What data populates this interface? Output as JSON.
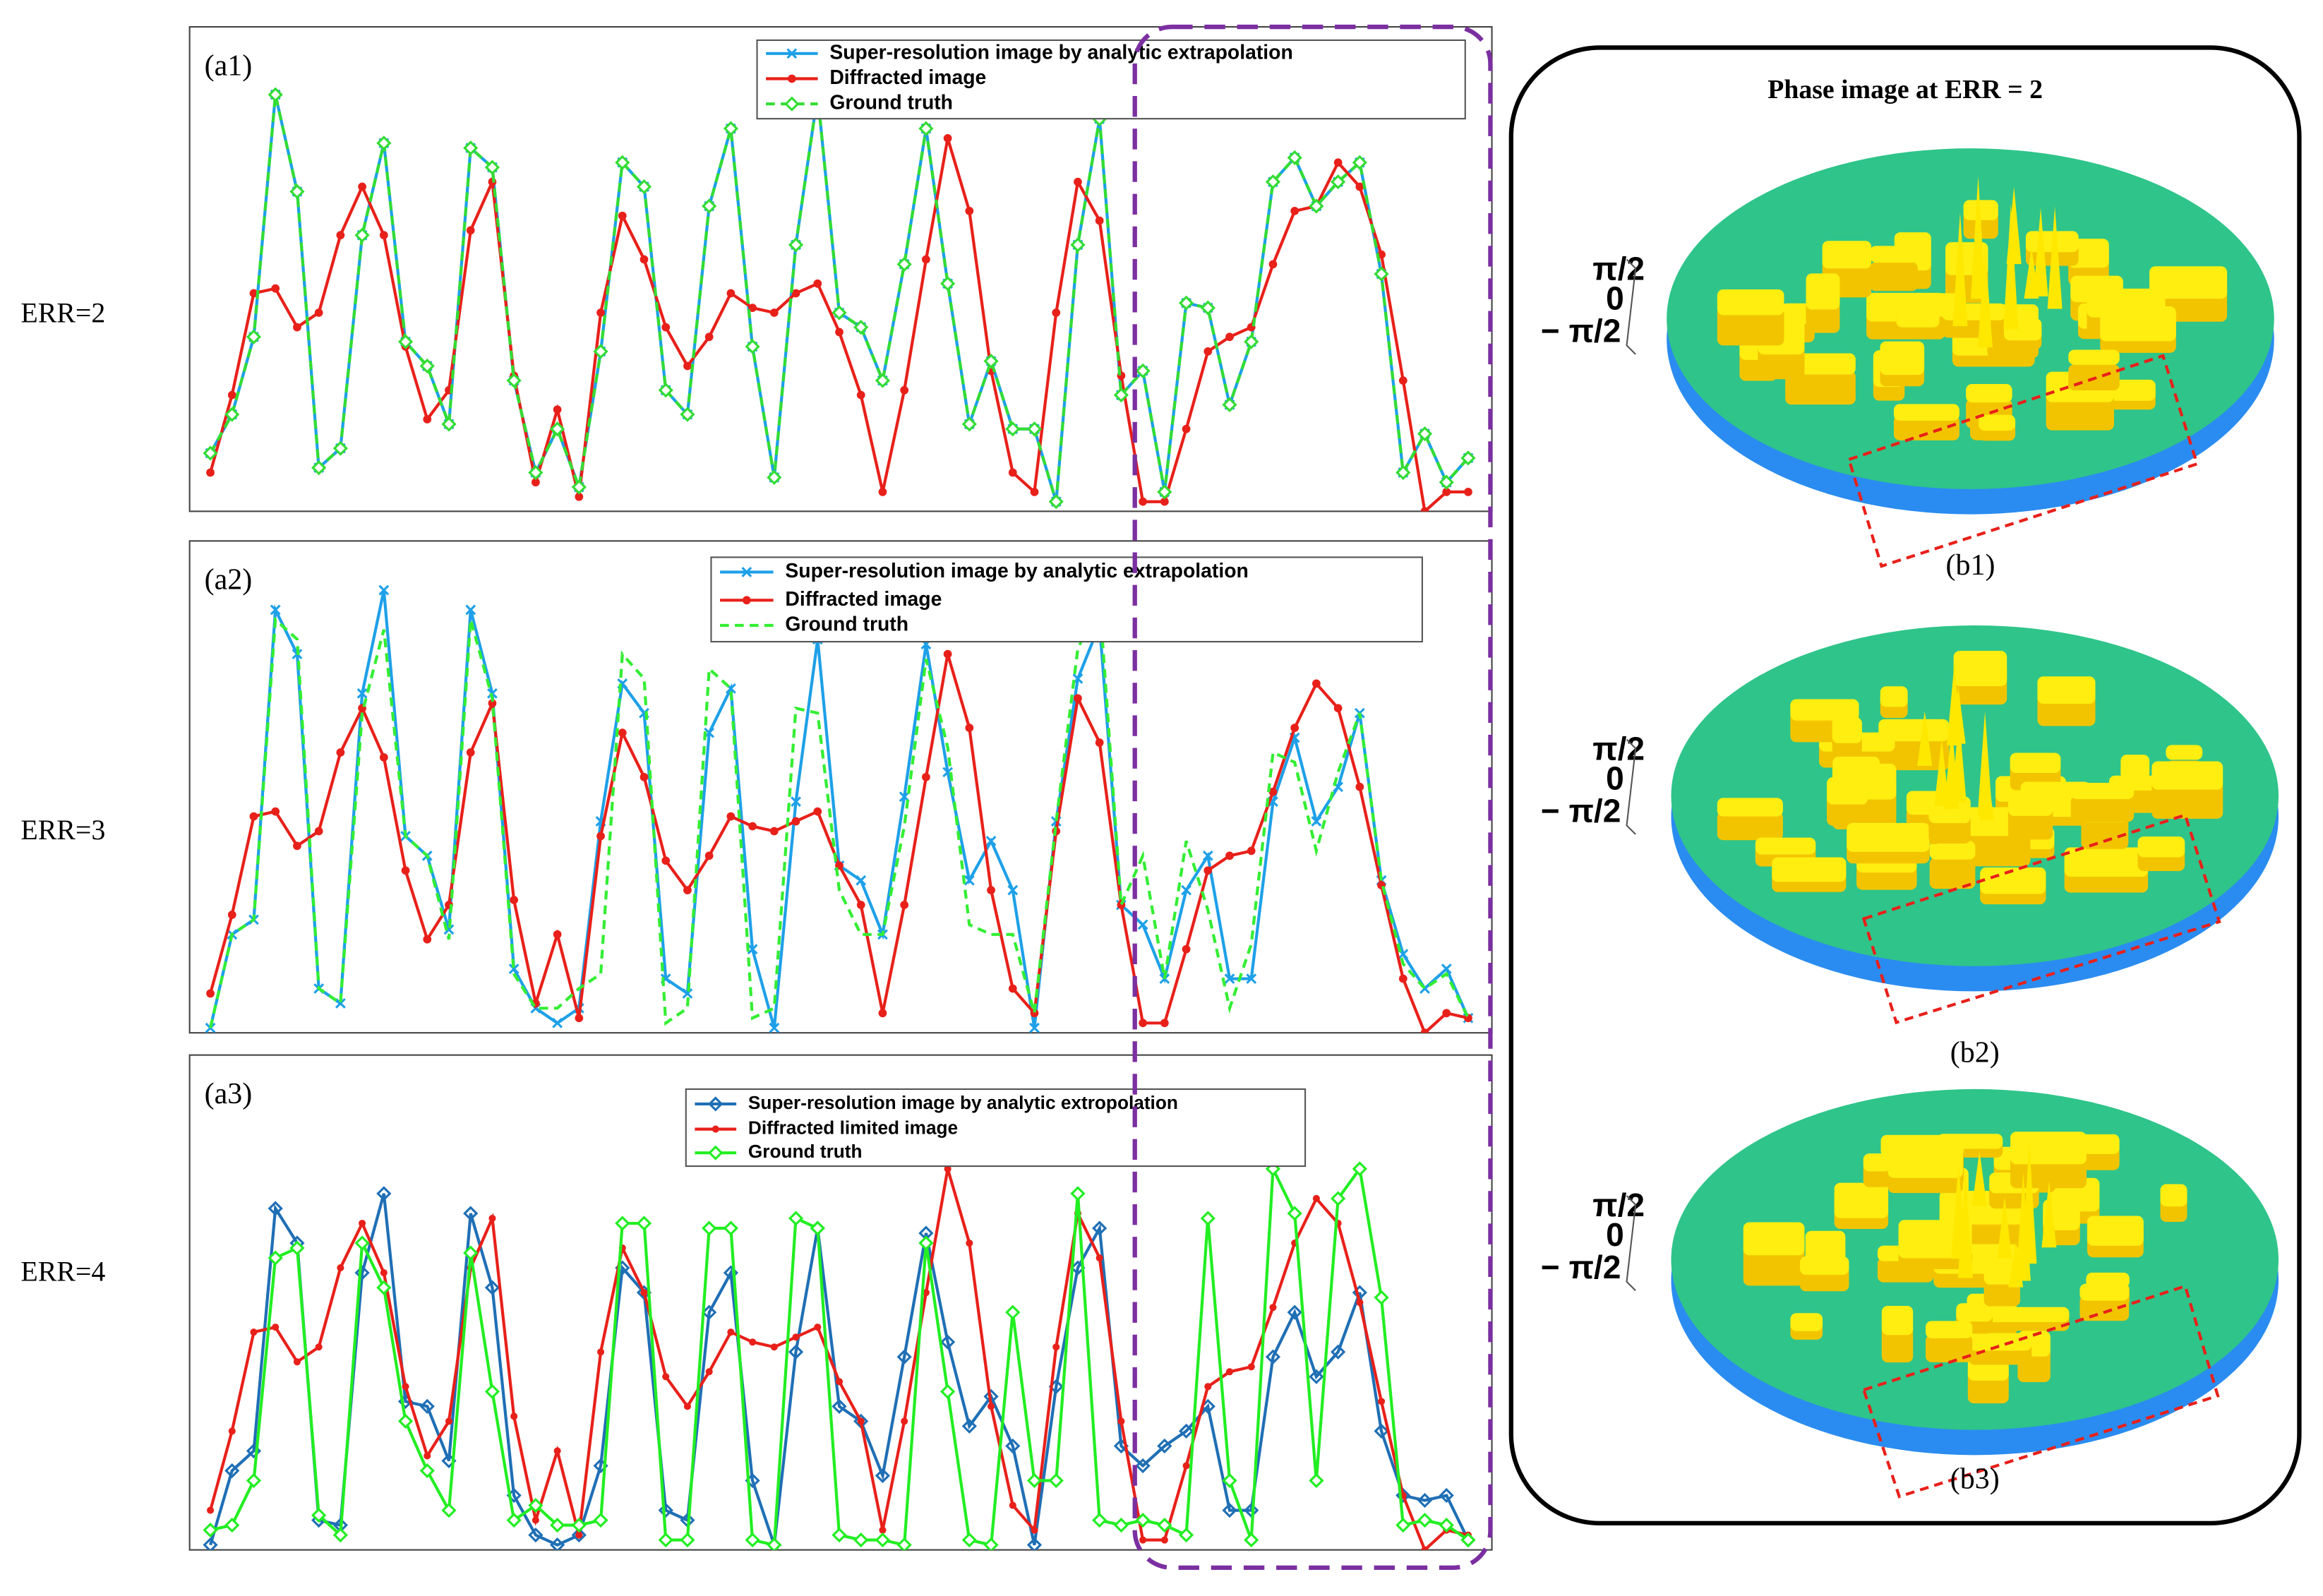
{
  "chart_data": [
    {
      "type": "line",
      "annotation": "(a1)",
      "ylabel": "ERR=2",
      "ylim": [
        0,
        100
      ],
      "legend": "upper right",
      "series": [
        {
          "name": "Super-resolution image by analytic extrapolation",
          "color": "#1ea0e8",
          "marker": "x",
          "linestyle": "solid",
          "values": [
            12,
            20,
            36,
            86,
            66,
            9,
            13,
            57,
            76,
            35,
            30,
            18,
            75,
            71,
            27,
            8,
            17,
            5,
            33,
            72,
            67,
            25,
            20,
            63,
            79,
            34,
            7,
            55,
            86,
            41,
            38,
            27,
            51,
            79,
            47,
            18,
            31,
            17,
            17,
            2,
            55,
            81,
            24,
            29,
            4,
            43,
            42,
            22,
            35,
            68,
            73,
            63,
            68,
            72,
            49,
            8,
            16,
            6,
            11
          ]
        },
        {
          "name": "Diffracted image",
          "color": "#e8201a",
          "marker": "star",
          "linestyle": "solid",
          "values": [
            8,
            24,
            45,
            46,
            38,
            41,
            57,
            67,
            57,
            34,
            19,
            25,
            58,
            68,
            28,
            6,
            21,
            3,
            41,
            61,
            52,
            38,
            30,
            36,
            45,
            42,
            41,
            45,
            47,
            37,
            24,
            4,
            25,
            52,
            77,
            62,
            29,
            8,
            4,
            41,
            68,
            60,
            28,
            2,
            2,
            17,
            33,
            36,
            38,
            51,
            62,
            63,
            72,
            67,
            53,
            27,
            0,
            4,
            4
          ]
        },
        {
          "name": "Ground truth",
          "color": "#33dd33",
          "marker": "diamond",
          "linestyle": "dashed",
          "values": [
            12,
            20,
            36,
            86,
            66,
            9,
            13,
            57,
            76,
            35,
            30,
            18,
            75,
            71,
            27,
            8,
            17,
            5,
            33,
            72,
            67,
            25,
            20,
            63,
            79,
            34,
            7,
            55,
            86,
            41,
            38,
            27,
            51,
            79,
            47,
            18,
            31,
            17,
            17,
            2,
            55,
            81,
            24,
            29,
            4,
            43,
            42,
            22,
            35,
            68,
            73,
            63,
            68,
            72,
            49,
            8,
            16,
            6,
            11
          ]
        }
      ]
    },
    {
      "type": "line",
      "annotation": "(a2)",
      "ylabel": "ERR=3",
      "ylim": [
        0,
        100
      ],
      "legend": "upper right",
      "series": [
        {
          "name": "Super-resolution image by analytic extrapolation",
          "color": "#1ea0e8",
          "marker": "x",
          "linestyle": "solid",
          "values": [
            1,
            20,
            23,
            86,
            77,
            9,
            6,
            69,
            90,
            40,
            36,
            21,
            86,
            69,
            13,
            5,
            2,
            5,
            43,
            71,
            65,
            11,
            8,
            61,
            70,
            17,
            1,
            47,
            80,
            34,
            31,
            20,
            48,
            79,
            53,
            31,
            39,
            29,
            1,
            43,
            72,
            83,
            26,
            22,
            11,
            29,
            36,
            11,
            11,
            47,
            60,
            43,
            50,
            65,
            31,
            16,
            9,
            13,
            3
          ]
        },
        {
          "name": "Diffracted image",
          "color": "#e8201a",
          "marker": "star",
          "linestyle": "solid",
          "values": [
            8,
            24,
            44,
            45,
            38,
            41,
            57,
            66,
            56,
            33,
            19,
            26,
            57,
            67,
            27,
            6,
            20,
            3,
            40,
            61,
            52,
            35,
            29,
            36,
            44,
            42,
            41,
            43,
            45,
            34,
            26,
            4,
            26,
            52,
            77,
            62,
            29,
            9,
            4,
            41,
            68,
            59,
            26,
            2,
            2,
            17,
            33,
            36,
            37,
            49,
            62,
            71,
            66,
            50,
            30,
            11,
            0,
            4,
            3
          ]
        },
        {
          "name": "Ground truth",
          "color": "#33ee33",
          "linestyle": "dashed",
          "values": [
            1,
            20,
            23,
            84,
            80,
            9,
            6,
            65,
            82,
            40,
            36,
            19,
            84,
            68,
            12,
            5,
            5,
            9,
            12,
            77,
            72,
            2,
            5,
            74,
            70,
            3,
            5,
            66,
            65,
            29,
            20,
            20,
            42,
            76,
            58,
            22,
            20,
            20,
            4,
            43,
            78,
            88,
            26,
            36,
            11,
            39,
            25,
            5,
            18,
            57,
            55,
            37,
            53,
            65,
            31,
            14,
            9,
            12,
            3
          ]
        }
      ]
    },
    {
      "type": "line",
      "annotation": "(a3)",
      "ylabel": "ERR=4",
      "ylim": [
        0,
        100
      ],
      "legend": "upper right",
      "series": [
        {
          "name": "Super-resolution image by analytic extropolation",
          "color": "#1f6fb5",
          "marker": "diamond-open",
          "linestyle": "solid",
          "values": [
            1,
            16,
            20,
            69,
            62,
            6,
            5,
            56,
            72,
            30,
            29,
            18,
            68,
            53,
            11,
            3,
            1,
            3,
            17,
            57,
            52,
            8,
            6,
            48,
            56,
            14,
            1,
            40,
            65,
            29,
            26,
            15,
            39,
            64,
            42,
            25,
            31,
            21,
            1,
            33,
            57,
            65,
            21,
            17,
            21,
            24,
            29,
            8,
            8,
            39,
            48,
            35,
            40,
            52,
            24,
            11,
            10,
            11,
            2
          ]
        },
        {
          "name": "Diffracted limited image",
          "color": "#e8201a",
          "marker": "dot",
          "linestyle": "solid",
          "values": [
            8,
            24,
            44,
            45,
            38,
            41,
            57,
            66,
            56,
            33,
            19,
            26,
            57,
            67,
            27,
            6,
            20,
            3,
            40,
            61,
            52,
            35,
            29,
            36,
            44,
            42,
            41,
            43,
            45,
            34,
            26,
            4,
            26,
            52,
            77,
            62,
            29,
            9,
            4,
            41,
            68,
            59,
            26,
            2,
            2,
            17,
            33,
            36,
            37,
            49,
            62,
            71,
            66,
            50,
            30,
            11,
            0,
            4,
            3
          ]
        },
        {
          "name": "Ground truth",
          "color": "#22ee22",
          "marker": "diamond",
          "linestyle": "solid",
          "values": [
            4,
            5,
            14,
            59,
            61,
            7,
            3,
            62,
            53,
            26,
            16,
            8,
            60,
            32,
            6,
            9,
            5,
            5,
            6,
            66,
            66,
            2,
            2,
            65,
            65,
            2,
            1,
            67,
            65,
            3,
            2,
            2,
            1,
            62,
            32,
            2,
            1,
            48,
            14,
            14,
            72,
            6,
            5,
            6,
            5,
            3,
            67,
            14,
            2,
            77,
            68,
            14,
            71,
            77,
            51,
            5,
            6,
            5,
            2
          ]
        }
      ]
    }
  ],
  "phase_panel": {
    "title": "Phase image at ERR = 2",
    "images": [
      {
        "caption": "(b1)",
        "scale_labels": [
          "π/2",
          "0",
          "− π/2"
        ]
      },
      {
        "caption": "(b2)",
        "scale_labels": [
          "π/2",
          "0",
          "− π/2"
        ]
      },
      {
        "caption": "(b3)",
        "scale_labels": [
          "π/2",
          "0",
          "− π/2"
        ]
      }
    ]
  }
}
